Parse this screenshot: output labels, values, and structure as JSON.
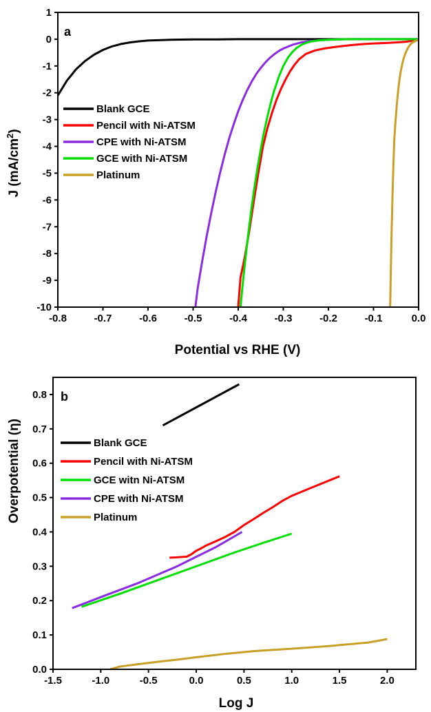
{
  "chart_data": [
    {
      "type": "line",
      "panel_label": "a",
      "xlabel": "Potential vs RHE (V)",
      "ylabel": "J (mA/cm",
      "ylabel_sup": "2",
      "ylabel_end": ")",
      "xlim": [
        -0.8,
        0.0
      ],
      "ylim": [
        -10,
        1
      ],
      "xticks": [
        -0.8,
        -0.7,
        -0.6,
        -0.5,
        -0.4,
        -0.3,
        -0.2,
        -0.1,
        0.0
      ],
      "xtick_labels": [
        "-0.8",
        "-0.7",
        "-0.6",
        "-0.5",
        "-0.4",
        "-0.3",
        "-0.2",
        "-0.1",
        "0.0"
      ],
      "yticks": [
        1,
        0,
        -1,
        -2,
        -3,
        -4,
        -5,
        -6,
        -7,
        -8,
        -9,
        -10
      ],
      "ytick_labels": [
        "1",
        "0",
        "-1",
        "-2",
        "-3",
        "-4",
        "-5",
        "-6",
        "-7",
        "-8",
        "-9",
        "-10"
      ],
      "grid": false,
      "legend_position": "left",
      "series": [
        {
          "name": "Blank GCE",
          "color": "#000000",
          "x": [
            -0.8,
            -0.78,
            -0.76,
            -0.74,
            -0.72,
            -0.7,
            -0.68,
            -0.66,
            -0.64,
            -0.62,
            -0.6,
            -0.55,
            -0.5,
            -0.45,
            -0.4,
            -0.3,
            -0.2,
            -0.1,
            0.0
          ],
          "y": [
            -2.1,
            -1.55,
            -1.13,
            -0.82,
            -0.58,
            -0.4,
            -0.27,
            -0.18,
            -0.12,
            -0.08,
            -0.05,
            -0.02,
            -0.01,
            -0.01,
            0.0,
            0.0,
            0.0,
            0.0,
            0.0
          ]
        },
        {
          "name": "Pencil with Ni-ATSM",
          "color": "#ff0000",
          "x": [
            -0.4,
            -0.395,
            -0.385,
            -0.375,
            -0.365,
            -0.355,
            -0.345,
            -0.335,
            -0.325,
            -0.315,
            -0.305,
            -0.295,
            -0.285,
            -0.275,
            -0.265,
            -0.25,
            -0.23,
            -0.21,
            -0.19,
            -0.17,
            -0.15,
            -0.12,
            -0.1,
            -0.07,
            -0.05,
            -0.03,
            -0.01,
            0.0
          ],
          "y": [
            -10.0,
            -8.9,
            -8.1,
            -7.1,
            -6.0,
            -4.95,
            -4.0,
            -3.3,
            -2.75,
            -2.25,
            -1.85,
            -1.5,
            -1.2,
            -0.95,
            -0.75,
            -0.55,
            -0.42,
            -0.35,
            -0.3,
            -0.26,
            -0.22,
            -0.18,
            -0.16,
            -0.14,
            -0.12,
            -0.1,
            -0.05,
            0.0
          ]
        },
        {
          "name": "CPE with Ni-ATSM",
          "color": "#8a2be2",
          "x": [
            -0.495,
            -0.49,
            -0.48,
            -0.47,
            -0.46,
            -0.45,
            -0.44,
            -0.43,
            -0.42,
            -0.41,
            -0.4,
            -0.39,
            -0.38,
            -0.37,
            -0.36,
            -0.35,
            -0.34,
            -0.33,
            -0.32,
            -0.31,
            -0.3,
            -0.28,
            -0.26,
            -0.24,
            -0.22,
            -0.2,
            -0.18,
            -0.15,
            -0.1,
            -0.05,
            0.0
          ],
          "y": [
            -10.0,
            -9.3,
            -8.3,
            -7.35,
            -6.5,
            -5.7,
            -4.97,
            -4.3,
            -3.7,
            -3.17,
            -2.69,
            -2.27,
            -1.9,
            -1.58,
            -1.3,
            -1.07,
            -0.87,
            -0.7,
            -0.56,
            -0.44,
            -0.35,
            -0.21,
            -0.12,
            -0.07,
            -0.04,
            -0.02,
            -0.01,
            0.0,
            0.0,
            0.0,
            0.0
          ]
        },
        {
          "name": "GCE with Ni-ATSM",
          "color": "#00e000",
          "x": [
            -0.395,
            -0.39,
            -0.385,
            -0.38,
            -0.375,
            -0.37,
            -0.365,
            -0.36,
            -0.355,
            -0.35,
            -0.345,
            -0.34,
            -0.335,
            -0.33,
            -0.325,
            -0.32,
            -0.31,
            -0.3,
            -0.29,
            -0.28,
            -0.27,
            -0.26,
            -0.25,
            -0.24,
            -0.22,
            -0.2,
            -0.18,
            -0.15,
            -0.1,
            -0.05,
            0.0
          ],
          "y": [
            -10.0,
            -9.15,
            -8.35,
            -7.6,
            -6.9,
            -6.25,
            -5.65,
            -5.1,
            -4.58,
            -4.1,
            -3.66,
            -3.25,
            -2.87,
            -2.52,
            -2.2,
            -1.91,
            -1.4,
            -1.0,
            -0.7,
            -0.48,
            -0.32,
            -0.21,
            -0.14,
            -0.09,
            -0.04,
            -0.02,
            -0.01,
            0.0,
            0.0,
            0.0,
            0.0
          ]
        },
        {
          "name": "Platinum",
          "color": "#c8a028",
          "x": [
            -0.063,
            -0.062,
            -0.061,
            -0.06,
            -0.059,
            -0.058,
            -0.057,
            -0.056,
            -0.055,
            -0.054,
            -0.052,
            -0.05,
            -0.048,
            -0.046,
            -0.044,
            -0.042,
            -0.04,
            -0.037,
            -0.034,
            -0.03,
            -0.026,
            -0.022,
            -0.018,
            -0.014,
            -0.01,
            -0.006,
            -0.002,
            0.0
          ],
          "y": [
            -10.0,
            -9.0,
            -8.2,
            -7.3,
            -6.6,
            -5.9,
            -5.3,
            -4.75,
            -4.25,
            -3.8,
            -3.25,
            -2.78,
            -2.37,
            -2.02,
            -1.72,
            -1.46,
            -1.24,
            -0.98,
            -0.77,
            -0.56,
            -0.4,
            -0.28,
            -0.19,
            -0.13,
            -0.09,
            -0.06,
            -0.04,
            -0.03
          ]
        }
      ]
    },
    {
      "type": "line",
      "panel_label": "b",
      "xlabel": "Log J",
      "ylabel": "Overpotential (η)",
      "xlim": [
        -1.5,
        2.3
      ],
      "ylim": [
        0.0,
        0.85
      ],
      "xticks": [
        -1.5,
        -1.0,
        -0.5,
        0.0,
        0.5,
        1.0,
        1.5,
        2.0
      ],
      "xtick_labels": [
        "-1.5",
        "-1.0",
        "-0.5",
        "0.0",
        "0.5",
        "1.0",
        "1.5",
        "2.0"
      ],
      "yticks": [
        0.0,
        0.1,
        0.2,
        0.3,
        0.4,
        0.5,
        0.6,
        0.7,
        0.8
      ],
      "ytick_labels": [
        "0.0",
        "0.1",
        "0.2",
        "0.3",
        "0.4",
        "0.5",
        "0.6",
        "0.7",
        "0.8"
      ],
      "grid": false,
      "legend_position": "top-left",
      "series": [
        {
          "name": "Blank GCE",
          "color": "#000000",
          "x": [
            -0.35,
            0.45
          ],
          "y": [
            0.71,
            0.83
          ]
        },
        {
          "name": "Pencil with Ni-ATSM",
          "color": "#ff0000",
          "x": [
            -0.28,
            -0.2,
            -0.1,
            -0.05,
            0.0,
            0.05,
            0.1,
            0.2,
            0.3,
            0.4,
            0.5,
            0.6,
            0.7,
            0.8,
            0.9,
            1.0,
            1.2,
            1.5
          ],
          "y": [
            0.325,
            0.326,
            0.328,
            0.335,
            0.345,
            0.352,
            0.36,
            0.372,
            0.385,
            0.4,
            0.42,
            0.437,
            0.455,
            0.472,
            0.49,
            0.505,
            0.528,
            0.562
          ]
        },
        {
          "name": "GCE witn Ni-ATSM",
          "color": "#00e000",
          "x": [
            -1.2,
            -0.8,
            -0.4,
            0.0,
            0.4,
            0.7,
            1.0
          ],
          "y": [
            0.182,
            0.22,
            0.26,
            0.3,
            0.34,
            0.368,
            0.395
          ]
        },
        {
          "name": "CPE with Ni-ATSM",
          "color": "#8a2be2",
          "x": [
            -1.3,
            -1.0,
            -0.6,
            -0.2,
            0.2,
            0.48
          ],
          "y": [
            0.178,
            0.21,
            0.252,
            0.3,
            0.355,
            0.4
          ]
        },
        {
          "name": "Platinum",
          "color": "#c8a028",
          "x": [
            -0.9,
            -0.8,
            -0.6,
            -0.4,
            -0.2,
            0.0,
            0.3,
            0.6,
            1.0,
            1.4,
            1.8,
            2.0
          ],
          "y": [
            0.0,
            0.008,
            0.015,
            0.022,
            0.028,
            0.035,
            0.045,
            0.053,
            0.06,
            0.068,
            0.078,
            0.088
          ]
        }
      ]
    }
  ]
}
